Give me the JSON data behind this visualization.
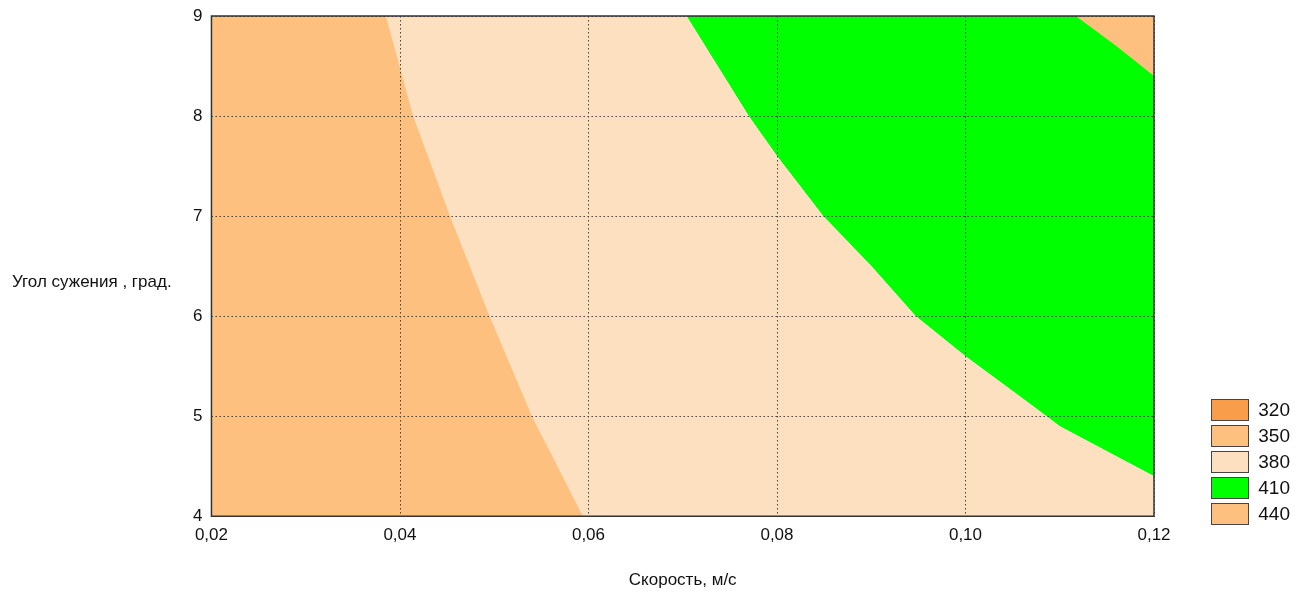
{
  "chart_data": {
    "type": "area",
    "xlabel": "Скорость, м/с",
    "ylabel": "Угол сужения , град.",
    "xlim": [
      0.02,
      0.12
    ],
    "ylim": [
      4,
      9
    ],
    "xticks": [
      {
        "value": 0.02,
        "label": "0,02"
      },
      {
        "value": 0.04,
        "label": "0,04"
      },
      {
        "value": 0.06,
        "label": "0,06"
      },
      {
        "value": 0.08,
        "label": "0,08"
      },
      {
        "value": 0.1,
        "label": "0,10"
      },
      {
        "value": 0.12,
        "label": "0,12"
      }
    ],
    "yticks": [
      4,
      5,
      6,
      7,
      8,
      9
    ],
    "grid": true,
    "legend": "bottom right",
    "line_style": "dotted",
    "series": [
      {
        "name": "320",
        "color": "#f99d4a"
      },
      {
        "name": "350",
        "color": "#fdc07f",
        "x": [
          0.02,
          0.0385,
          0.0414,
          0.0453,
          0.0495,
          0.054,
          0.0594
        ],
        "values": [
          9,
          9,
          8,
          7,
          6,
          5,
          4
        ]
      },
      {
        "name": "380",
        "color": "#fde0c0",
        "x": [
          0.02,
          0.0704,
          0.077,
          0.08,
          0.0849,
          0.09,
          0.0947,
          0.1,
          0.1086,
          0.11,
          0.12
        ],
        "values": [
          9,
          9,
          8,
          7.6,
          7,
          6.5,
          6,
          5.6,
          5,
          4.9,
          4.4
        ]
      },
      {
        "name": "410",
        "color": "#00ff00",
        "x": [
          0.0704,
          0.077,
          0.08,
          0.0849,
          0.09,
          0.0947,
          0.1,
          0.1086,
          0.11,
          0.12,
          0.12
        ],
        "values": [
          9,
          8,
          7.6,
          7,
          6.5,
          6,
          5.6,
          5,
          4.9,
          4.4,
          9
        ]
      },
      {
        "name": "440",
        "color": "#fdc07f",
        "x": [
          0.1117,
          0.116,
          0.12,
          0.12
        ],
        "values": [
          9,
          8.7,
          8.4,
          9
        ]
      }
    ]
  }
}
